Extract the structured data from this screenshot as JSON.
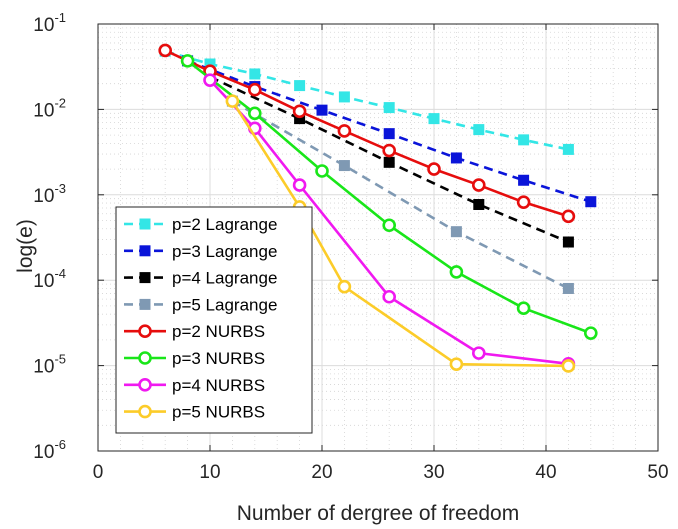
{
  "chart_data": {
    "type": "line",
    "xlabel": "Number of dergree of freedom",
    "ylabel": "log(e)",
    "xlim": [
      0,
      50
    ],
    "ylim": [
      1e-06,
      0.1
    ],
    "yscale": "log",
    "xticks": [
      "0",
      "10",
      "20",
      "30",
      "40",
      "50"
    ],
    "yticks": [
      {
        "base": "10",
        "exp": "-6"
      },
      {
        "base": "10",
        "exp": "-5"
      },
      {
        "base": "10",
        "exp": "-4"
      },
      {
        "base": "10",
        "exp": "-3"
      },
      {
        "base": "10",
        "exp": "-2"
      },
      {
        "base": "10",
        "exp": "-1"
      }
    ],
    "grid": true,
    "legend_position": "left",
    "series": [
      {
        "name": "p=2 Lagrange",
        "color": "#33e6e6",
        "style": "dashed",
        "marker": "square",
        "x": [
          6,
          10,
          14,
          18,
          22,
          26,
          30,
          34,
          38,
          42
        ],
        "y": [
          0.048,
          0.034,
          0.026,
          0.019,
          0.014,
          0.0105,
          0.0078,
          0.0058,
          0.0044,
          0.0034
        ]
      },
      {
        "name": "p=3 Lagrange",
        "color": "#0a14d9",
        "style": "dashed",
        "marker": "square",
        "x": [
          8,
          14,
          20,
          26,
          32,
          38,
          44
        ],
        "y": [
          0.037,
          0.0185,
          0.0098,
          0.0052,
          0.0027,
          0.00148,
          0.00083
        ]
      },
      {
        "name": "p=4 Lagrange",
        "color": "#000000",
        "style": "dashed",
        "marker": "square",
        "x": [
          10,
          18,
          26,
          34,
          42
        ],
        "y": [
          0.024,
          0.0078,
          0.0024,
          0.00077,
          0.00028
        ]
      },
      {
        "name": "p=5 Lagrange",
        "color": "#7f99b3",
        "style": "dashed",
        "marker": "square",
        "x": [
          12,
          22,
          32,
          42
        ],
        "y": [
          0.0125,
          0.0022,
          0.00037,
          8e-05
        ]
      },
      {
        "name": "p=2 NURBS",
        "color": "#e60d0d",
        "style": "solid",
        "marker": "circle",
        "x": [
          6,
          10,
          14,
          18,
          22,
          26,
          30,
          34,
          38,
          42
        ],
        "y": [
          0.049,
          0.028,
          0.017,
          0.0095,
          0.0056,
          0.0033,
          0.002,
          0.0013,
          0.00082,
          0.00056
        ]
      },
      {
        "name": "p=3 NURBS",
        "color": "#19e619",
        "style": "solid",
        "marker": "circle",
        "x": [
          8,
          14,
          20,
          26,
          32,
          38,
          44
        ],
        "y": [
          0.037,
          0.009,
          0.0019,
          0.00044,
          0.000125,
          4.7e-05,
          2.4e-05
        ]
      },
      {
        "name": "p=4 NURBS",
        "color": "#f019f0",
        "style": "solid",
        "marker": "circle",
        "x": [
          10,
          14,
          18,
          26,
          34,
          42
        ],
        "y": [
          0.022,
          0.006,
          0.0013,
          6.4e-05,
          1.4e-05,
          1.05e-05
        ]
      },
      {
        "name": "p=5 NURBS",
        "color": "#fccc29",
        "style": "solid",
        "marker": "circle",
        "x": [
          12,
          18,
          22,
          32,
          42
        ],
        "y": [
          0.0125,
          0.00072,
          8.4e-05,
          1.04e-05,
          9.9e-06
        ]
      }
    ]
  }
}
